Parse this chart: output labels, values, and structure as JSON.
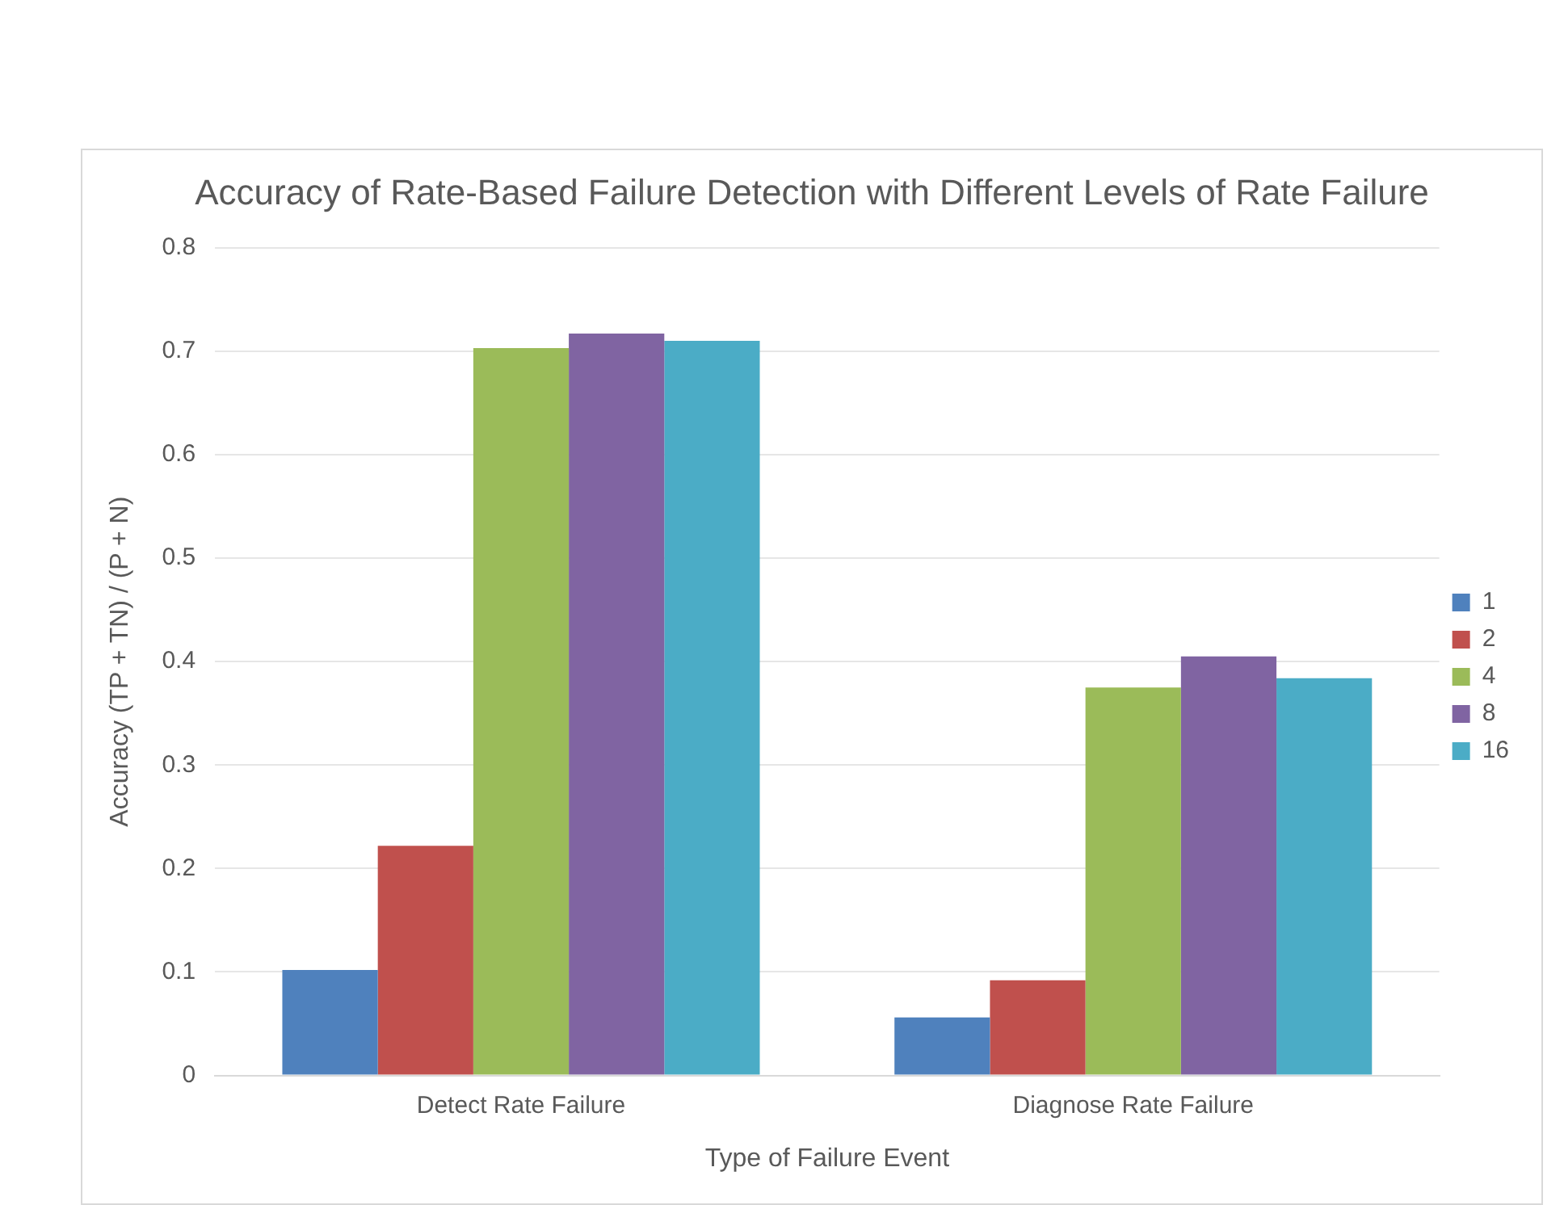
{
  "chart_data": {
    "type": "bar",
    "title": "Accuracy of Rate-Based Failure Detection with Different Levels of Rate Failure",
    "xlabel": "Type of Failure Event",
    "ylabel": "Accuracy (TP + TN) / (P + N)",
    "categories": [
      "Detect Rate Failure",
      "Diagnose Rate Failure"
    ],
    "series": [
      {
        "name": "1",
        "color": "#4f81bd",
        "values": [
          0.102,
          0.056
        ]
      },
      {
        "name": "2",
        "color": "#c0504d",
        "values": [
          0.222,
          0.092
        ]
      },
      {
        "name": "4",
        "color": "#9bbb59",
        "values": [
          0.703,
          0.375
        ]
      },
      {
        "name": "8",
        "color": "#8064a2",
        "values": [
          0.717,
          0.405
        ]
      },
      {
        "name": "16",
        "color": "#4bacc6",
        "values": [
          0.71,
          0.384
        ]
      }
    ],
    "ylim": [
      0,
      0.8
    ],
    "yticks": [
      0,
      0.1,
      0.2,
      0.3,
      0.4,
      0.5,
      0.6,
      0.7,
      0.8
    ],
    "grid": "y",
    "legend": "right"
  }
}
